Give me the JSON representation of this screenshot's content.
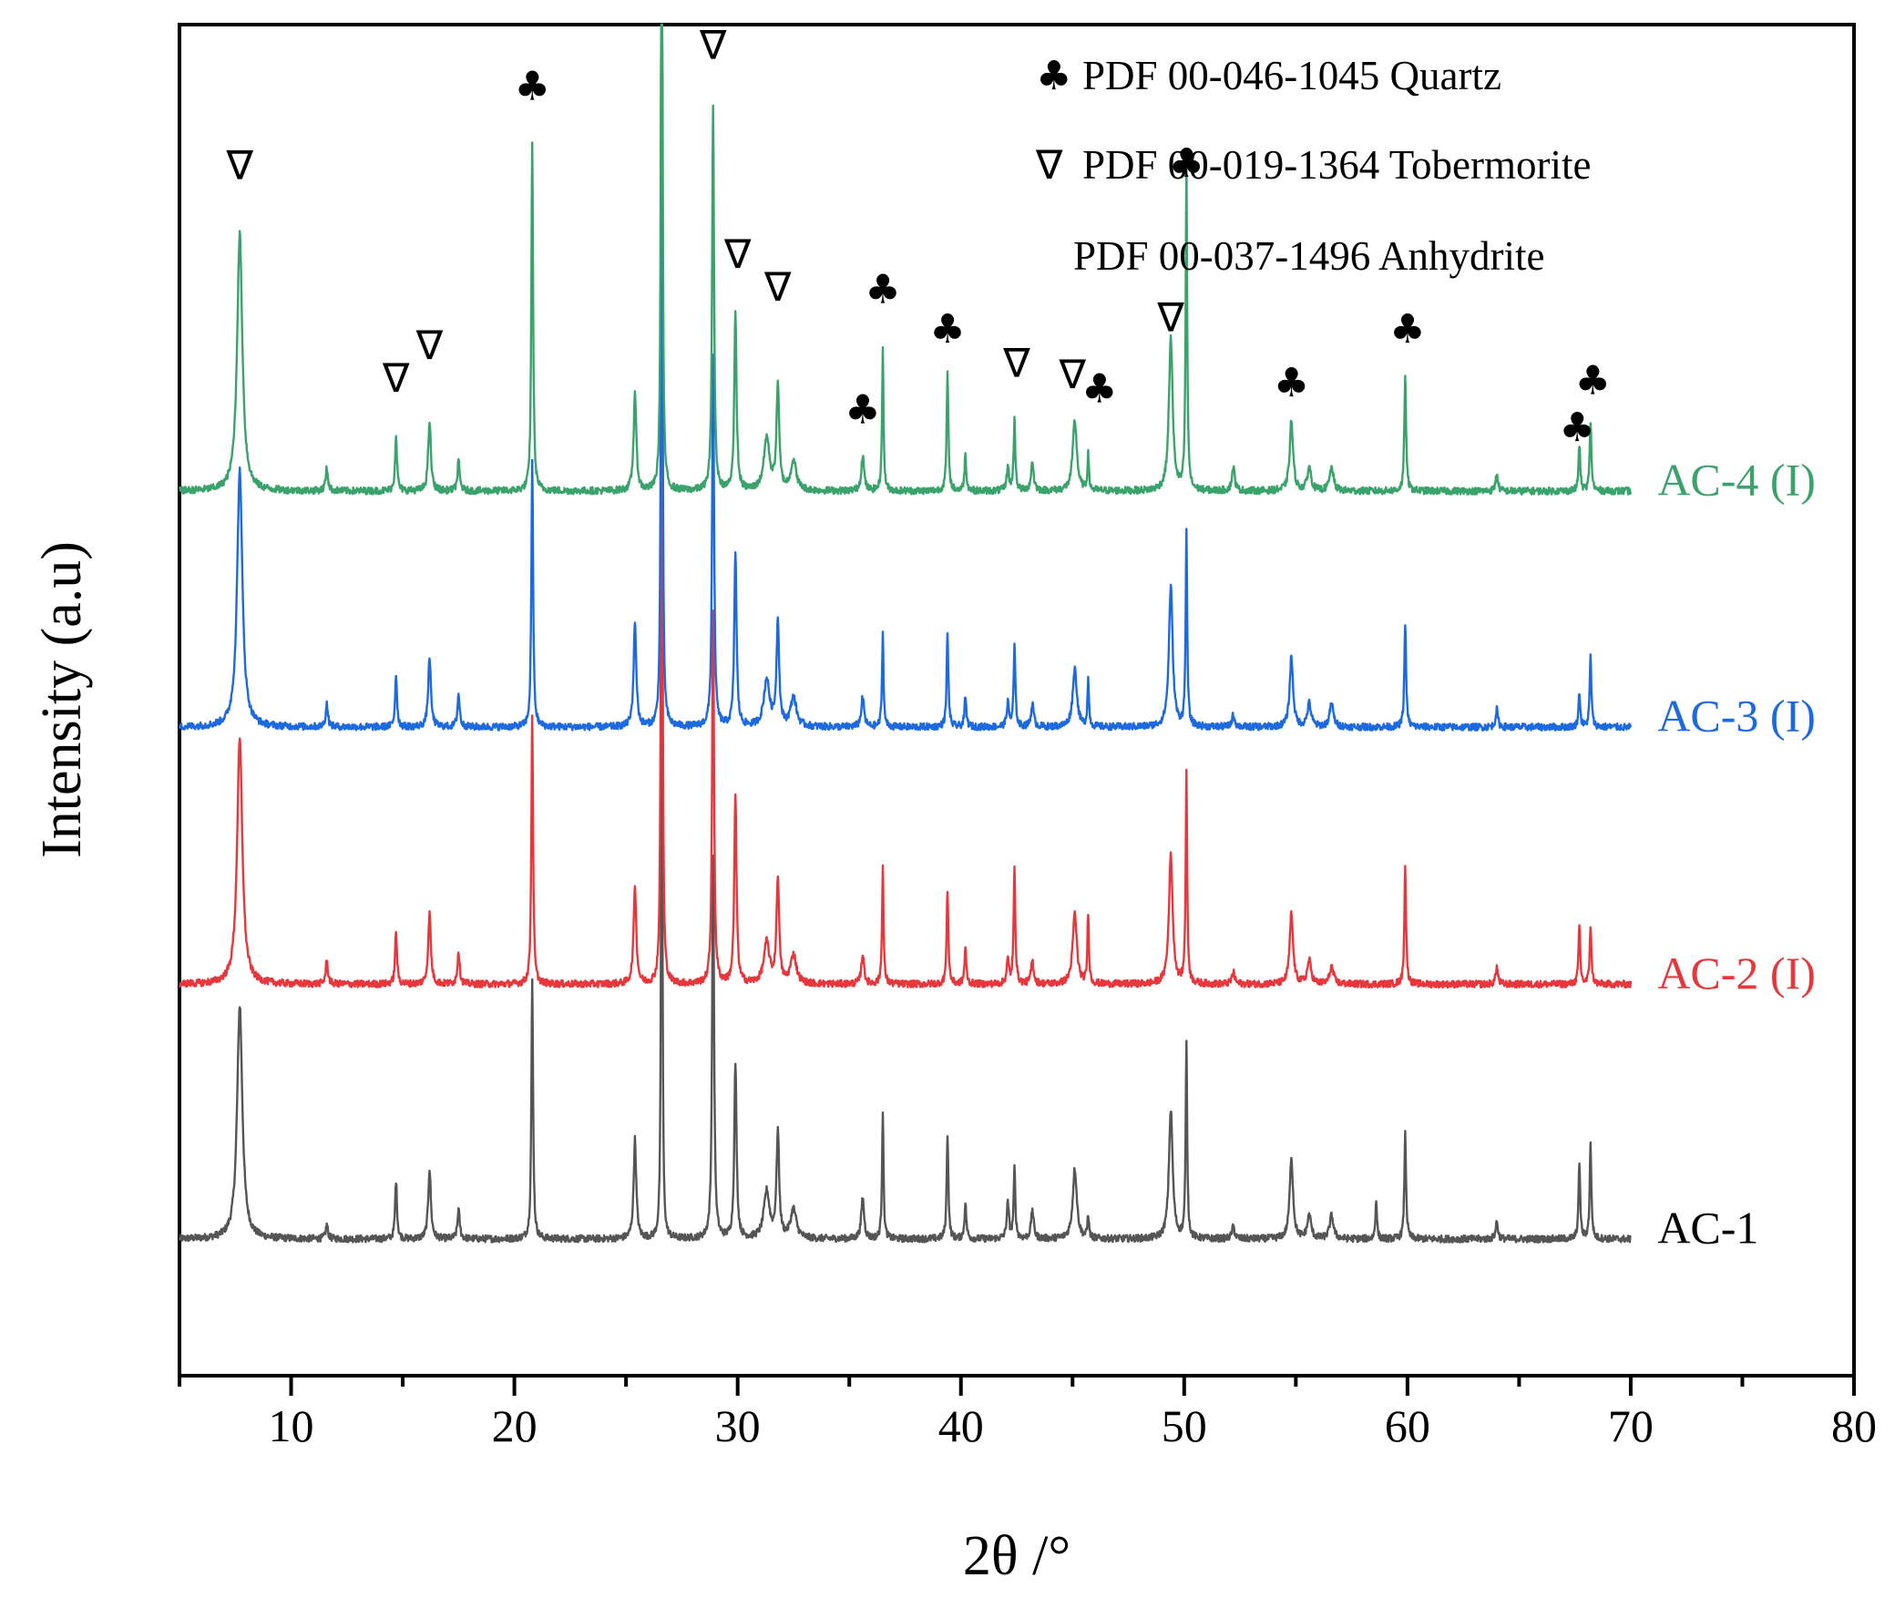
{
  "chart_data": {
    "type": "line",
    "xlabel": "2θ /°",
    "ylabel": "Intensity (a.u)",
    "xlim": [
      5,
      80
    ],
    "x_ticks": [
      10,
      20,
      30,
      40,
      50,
      60,
      70,
      80
    ],
    "x_data_range": [
      5,
      70
    ],
    "grid": false,
    "legend": {
      "placement": "top-right",
      "entries": [
        {
          "symbol": "♣",
          "label": "PDF 00-046-1045 Quartz"
        },
        {
          "symbol": "∇",
          "label": "PDF 00-019-1364 Tobermorite"
        },
        {
          "symbol": "",
          "label": "PDF 00-037-1496 Anhydrite"
        }
      ]
    },
    "peaks": [
      {
        "x": 7.7,
        "width": 0.28,
        "h": [
          0.2,
          0.21,
          0.22,
          0.22
        ]
      },
      {
        "x": 11.6,
        "width": 0.12,
        "h": [
          0.012,
          0.02,
          0.02,
          0.02
        ]
      },
      {
        "x": 14.7,
        "width": 0.1,
        "h": [
          0.05,
          0.045,
          0.045,
          0.048
        ]
      },
      {
        "x": 16.2,
        "width": 0.14,
        "h": [
          0.06,
          0.06,
          0.06,
          0.06
        ]
      },
      {
        "x": 17.5,
        "width": 0.12,
        "h": [
          0.025,
          0.028,
          0.028,
          0.025
        ]
      },
      {
        "x": 20.8,
        "width": 0.09,
        "h": [
          0.22,
          0.23,
          0.23,
          0.3
        ]
      },
      {
        "x": 25.4,
        "width": 0.14,
        "h": [
          0.085,
          0.085,
          0.09,
          0.085
        ]
      },
      {
        "x": 26.6,
        "width": 0.06,
        "h": [
          0.67,
          0.98,
          0.98,
          0.98
        ]
      },
      {
        "x": 28.9,
        "width": 0.1,
        "h": [
          0.33,
          0.32,
          0.32,
          0.33
        ]
      },
      {
        "x": 29.9,
        "width": 0.12,
        "h": [
          0.15,
          0.16,
          0.15,
          0.15
        ]
      },
      {
        "x": 31.3,
        "width": 0.3,
        "h": [
          0.04,
          0.035,
          0.04,
          0.045
        ]
      },
      {
        "x": 31.8,
        "width": 0.14,
        "h": [
          0.09,
          0.09,
          0.09,
          0.09
        ]
      },
      {
        "x": 32.5,
        "width": 0.3,
        "h": [
          0.025,
          0.025,
          0.025,
          0.025
        ]
      },
      {
        "x": 35.6,
        "width": 0.15,
        "h": [
          0.035,
          0.025,
          0.025,
          0.03
        ]
      },
      {
        "x": 36.5,
        "width": 0.08,
        "h": [
          0.11,
          0.1,
          0.08,
          0.12
        ]
      },
      {
        "x": 39.4,
        "width": 0.09,
        "h": [
          0.09,
          0.08,
          0.08,
          0.1
        ]
      },
      {
        "x": 40.2,
        "width": 0.1,
        "h": [
          0.03,
          0.03,
          0.025,
          0.03
        ]
      },
      {
        "x": 42.1,
        "width": 0.12,
        "h": [
          0.03,
          0.02,
          0.02,
          0.02
        ]
      },
      {
        "x": 42.4,
        "width": 0.09,
        "h": [
          0.06,
          0.1,
          0.07,
          0.06
        ]
      },
      {
        "x": 43.2,
        "width": 0.14,
        "h": [
          0.025,
          0.02,
          0.02,
          0.025
        ]
      },
      {
        "x": 45.1,
        "width": 0.22,
        "h": [
          0.06,
          0.06,
          0.05,
          0.06
        ]
      },
      {
        "x": 45.7,
        "width": 0.08,
        "h": [
          0.02,
          0.06,
          0.04,
          0.03
        ]
      },
      {
        "x": 49.4,
        "width": 0.2,
        "h": [
          0.11,
          0.11,
          0.12,
          0.13
        ]
      },
      {
        "x": 50.1,
        "width": 0.08,
        "h": [
          0.17,
          0.18,
          0.17,
          0.28
        ]
      },
      {
        "x": 52.2,
        "width": 0.15,
        "h": [
          0.01,
          0.01,
          0.01,
          0.02
        ]
      },
      {
        "x": 54.8,
        "width": 0.18,
        "h": [
          0.07,
          0.06,
          0.06,
          0.06
        ]
      },
      {
        "x": 55.6,
        "width": 0.2,
        "h": [
          0.02,
          0.02,
          0.02,
          0.02
        ]
      },
      {
        "x": 56.6,
        "width": 0.2,
        "h": [
          0.02,
          0.015,
          0.02,
          0.02
        ]
      },
      {
        "x": 58.6,
        "width": 0.08,
        "h": [
          0.035,
          0.0,
          0.0,
          0.0
        ]
      },
      {
        "x": 59.9,
        "width": 0.09,
        "h": [
          0.09,
          0.1,
          0.09,
          0.1
        ]
      },
      {
        "x": 64.0,
        "width": 0.12,
        "h": [
          0.015,
          0.015,
          0.015,
          0.015
        ]
      },
      {
        "x": 67.7,
        "width": 0.09,
        "h": [
          0.065,
          0.05,
          0.03,
          0.04
        ]
      },
      {
        "x": 68.2,
        "width": 0.09,
        "h": [
          0.08,
          0.05,
          0.06,
          0.06
        ]
      }
    ],
    "series": [
      {
        "name": "AC-1",
        "color": "#555555",
        "baseline": 0.255,
        "label_y": 0.264
      },
      {
        "name": "AC-2 (I)",
        "color": "#e8373c",
        "baseline": 0.473,
        "label_y": 0.482
      },
      {
        "name": "AC-3 (I)",
        "color": "#1d6ae0",
        "baseline": 0.693,
        "label_y": 0.702
      },
      {
        "name": "AC-4 (I)",
        "color": "#3aa36b",
        "baseline": 0.895,
        "label_y": 0.904
      }
    ],
    "series_label_x": 71.2,
    "annotations": [
      {
        "symbol": "∇",
        "x": 7.7,
        "y": 1.162
      },
      {
        "symbol": "∇",
        "x": 14.7,
        "y": 0.98
      },
      {
        "symbol": "∇",
        "x": 16.2,
        "y": 1.008
      },
      {
        "symbol": "♣",
        "x": 20.8,
        "y": 1.23
      },
      {
        "symbol": "♣",
        "x": 26.6,
        "y": 1.415
      },
      {
        "symbol": "∇",
        "x": 28.9,
        "y": 1.265
      },
      {
        "symbol": "∇",
        "x": 30.0,
        "y": 1.086
      },
      {
        "symbol": "∇",
        "x": 31.8,
        "y": 1.058
      },
      {
        "symbol": "♣",
        "x": 35.6,
        "y": 0.953
      },
      {
        "symbol": "♣",
        "x": 36.5,
        "y": 1.056
      },
      {
        "symbol": "♣",
        "x": 39.4,
        "y": 1.022
      },
      {
        "symbol": "∇",
        "x": 42.5,
        "y": 0.993
      },
      {
        "symbol": "∇",
        "x": 45.0,
        "y": 0.983
      },
      {
        "symbol": "♣",
        "x": 46.2,
        "y": 0.971
      },
      {
        "symbol": "∇",
        "x": 49.4,
        "y": 1.032
      },
      {
        "symbol": "♣",
        "x": 50.1,
        "y": 1.164
      },
      {
        "symbol": "♣",
        "x": 54.8,
        "y": 0.976
      },
      {
        "symbol": "♣",
        "x": 60.0,
        "y": 1.022
      },
      {
        "symbol": "♣",
        "x": 67.6,
        "y": 0.938
      },
      {
        "symbol": "♣",
        "x": 68.3,
        "y": 0.978
      }
    ]
  }
}
